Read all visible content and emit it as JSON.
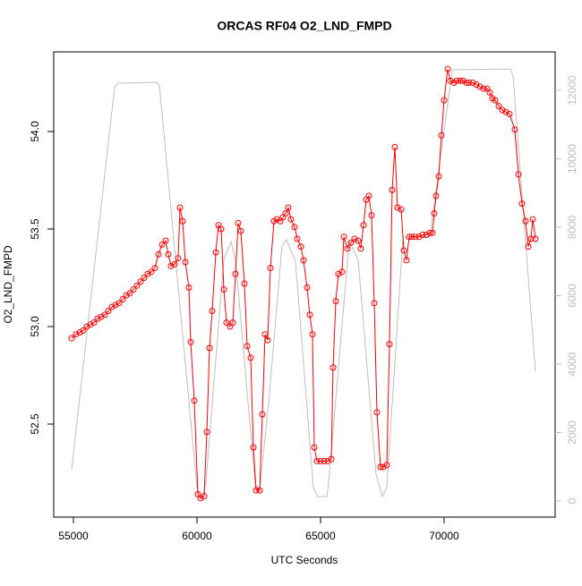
{
  "chart_data": {
    "type": "line",
    "title": "ORCAS RF04 O2_LND_FMPD",
    "xlabel": "UTC Seconds",
    "ylabel": "O2_LND_FMPD",
    "xlim": [
      54203,
      74493
    ],
    "xticks": [
      55000,
      60000,
      65000,
      70000
    ],
    "ylim": [
      52.023,
      54.408
    ],
    "yticks": [
      52.5,
      {
        "value": 53,
        "label": "53.0"
      },
      53.5,
      {
        "value": 54,
        "label": "54.0"
      }
    ],
    "y2lim": [
      -470,
      13124
    ],
    "y2ticks": [
      0,
      2000,
      4000,
      6000,
      8000,
      10000,
      12000
    ],
    "y2color": "#bebebe",
    "series": [
      {
        "color": "#ff0000",
        "markers": true,
        "x": [
          54928,
          55109,
          55254,
          55399,
          55543,
          55688,
          55833,
          55978,
          56123,
          56268,
          56413,
          56558,
          56703,
          56848,
          56993,
          57138,
          57283,
          57428,
          57572,
          57717,
          57862,
          58007,
          58152,
          58297,
          58442,
          58587,
          58732,
          58840,
          58949,
          59094,
          59239,
          59311,
          59420,
          59529,
          59674,
          59746,
          59891,
          60036,
          60145,
          60290,
          60399,
          60507,
          60616,
          60761,
          60870,
          60978,
          61087,
          61196,
          61340,
          61449,
          61558,
          61667,
          61775,
          61920,
          62029,
          62174,
          62283,
          62391,
          62536,
          62645,
          62754,
          62862,
          62971,
          63116,
          63225,
          63370,
          63478,
          63587,
          63696,
          63804,
          63949,
          64058,
          64203,
          64311,
          64456,
          64565,
          64674,
          64746,
          64855,
          65000,
          65145,
          65290,
          65435,
          65507,
          65616,
          65725,
          65870,
          65942,
          66086,
          66231,
          66376,
          66521,
          66630,
          66739,
          66847,
          66956,
          67065,
          67173,
          67282,
          67427,
          67536,
          67681,
          67789,
          67898,
          68007,
          68116,
          68261,
          68369,
          68478,
          68587,
          68695,
          68840,
          68985,
          69130,
          69275,
          69420,
          69529,
          69601,
          69674,
          69783,
          69891,
          70000,
          70145,
          70254,
          70399,
          70507,
          70652,
          70761,
          70906,
          71015,
          71159,
          71304,
          71449,
          71594,
          71739,
          71848,
          71956,
          72065,
          72210,
          72355,
          72500,
          72645,
          72862,
          73007,
          73152,
          73297,
          73406,
          73514,
          73587,
          73696
        ],
        "values": [
          52.94,
          52.96,
          52.97,
          52.98,
          53.0,
          53.01,
          53.02,
          53.04,
          53.05,
          53.06,
          53.08,
          53.1,
          53.11,
          53.12,
          53.14,
          53.16,
          53.17,
          53.19,
          53.21,
          53.23,
          53.25,
          53.27,
          53.28,
          53.3,
          53.37,
          53.42,
          53.44,
          53.37,
          53.31,
          53.32,
          53.35,
          53.61,
          53.54,
          53.33,
          53.2,
          52.92,
          52.62,
          52.14,
          52.12,
          52.13,
          52.46,
          52.89,
          53.08,
          53.38,
          53.52,
          53.5,
          53.19,
          53.02,
          53.0,
          53.02,
          53.27,
          53.53,
          53.49,
          53.22,
          52.9,
          52.84,
          52.38,
          52.16,
          52.16,
          52.55,
          52.96,
          52.93,
          53.3,
          53.54,
          53.55,
          53.54,
          53.56,
          53.58,
          53.61,
          53.55,
          53.51,
          53.45,
          53.41,
          53.34,
          53.2,
          53.06,
          52.96,
          52.38,
          52.31,
          52.31,
          52.31,
          52.31,
          52.32,
          52.79,
          53.13,
          53.27,
          53.28,
          53.46,
          53.4,
          53.43,
          53.45,
          53.44,
          53.4,
          53.52,
          53.65,
          53.67,
          53.57,
          53.12,
          52.56,
          52.28,
          52.28,
          52.29,
          52.91,
          53.7,
          53.92,
          53.61,
          53.6,
          53.39,
          53.34,
          53.46,
          53.46,
          53.46,
          53.46,
          53.47,
          53.47,
          53.48,
          53.48,
          53.58,
          53.67,
          53.77,
          53.98,
          54.16,
          54.32,
          54.26,
          54.25,
          54.26,
          54.26,
          54.26,
          54.25,
          54.25,
          54.25,
          54.24,
          54.23,
          54.22,
          54.22,
          54.2,
          54.17,
          54.16,
          54.13,
          54.11,
          54.1,
          54.09,
          54.01,
          53.78,
          53.63,
          53.54,
          53.41,
          53.45,
          53.55,
          53.45
        ]
      },
      {
        "color": "#bebebe",
        "axis": "y2",
        "markers": false,
        "x": [
          54928,
          56667,
          56812,
          58370,
          58478,
          60000,
          60181,
          60362,
          61087,
          61377,
          61558,
          62355,
          62536,
          62899,
          63442,
          63623,
          63804,
          63985,
          64710,
          64891,
          65254,
          65326,
          66159,
          66521,
          67246,
          67500,
          67681,
          68333,
          69420,
          70326,
          72681,
          72790,
          73696
        ],
        "values": [
          915,
          12103,
          12207,
          12234,
          12155,
          392,
          52,
          523,
          7058,
          7581,
          7058,
          523,
          288,
          2875,
          7450,
          7633,
          7319,
          7006,
          392,
          131,
          131,
          523,
          7581,
          7058,
          784,
          131,
          392,
          7711,
          7711,
          12599,
          12625,
          12416,
          3790
        ]
      }
    ]
  }
}
